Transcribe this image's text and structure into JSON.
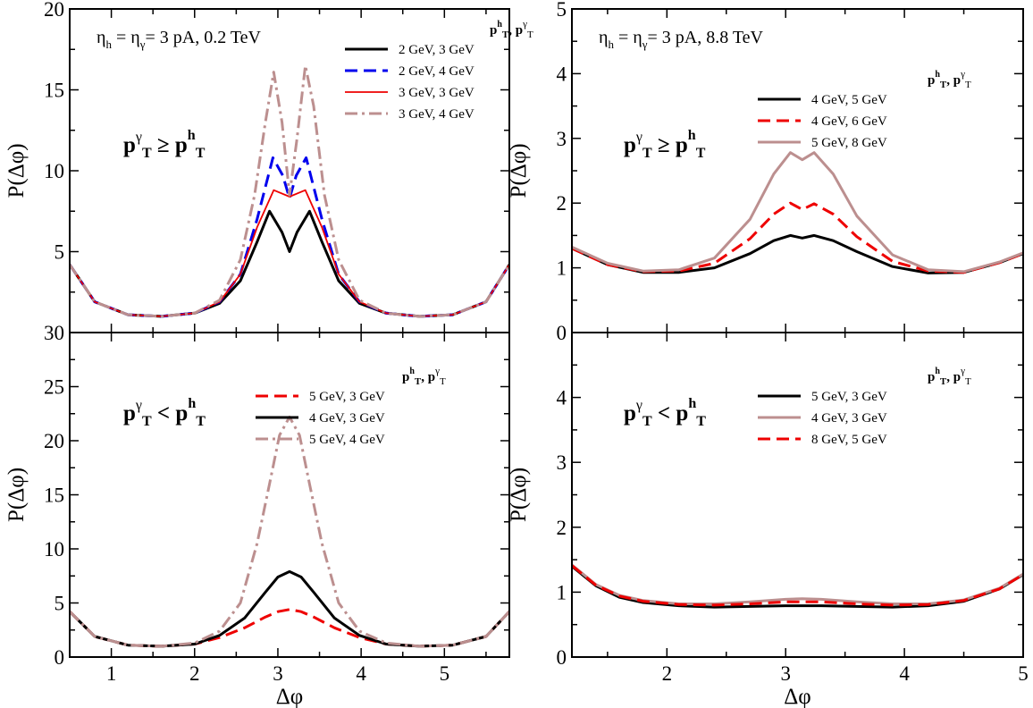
{
  "chart_data": [
    {
      "type": "line",
      "panel": "top-left",
      "ylabel": "P(Δφ)",
      "xlabel": "",
      "xlim": [
        0.5,
        5.78
      ],
      "ylim": [
        0,
        20
      ],
      "xticks": [
        1,
        2,
        3,
        4,
        5
      ],
      "yticks": [
        0,
        5,
        10,
        15,
        20
      ],
      "ytick_labels": [
        "",
        "5",
        "10",
        "15",
        "20"
      ],
      "show_x_tick_labels": false,
      "annotation": {
        "eta_h": "η",
        "sub_h": "h",
        "eq1": " = η",
        "sub_g": "γ",
        "eq2": "= 3   pA, 0.2 TeV"
      },
      "condition": {
        "p1": "p",
        "sup1": "γ",
        "sub1": "T",
        "rel": "≥",
        "p2": "p",
        "sup2": "h",
        "sub2": "T"
      },
      "legend_title": {
        "p": "p",
        "sup_h": "h",
        "sub_t": "T",
        "sep": ", p",
        "sup_g": "γ",
        "sub_t2": "T"
      },
      "legend_position": "top-right",
      "series": [
        {
          "name": "2 GeV, 3 GeV",
          "color": "#000000",
          "dash": "",
          "width": 3,
          "x": [
            0.5,
            0.8,
            1.2,
            1.6,
            2.0,
            2.3,
            2.55,
            2.75,
            2.9,
            3.05,
            3.14,
            3.23,
            3.38,
            3.53,
            3.73,
            3.98,
            4.3,
            4.7,
            5.1,
            5.5,
            5.78
          ],
          "y": [
            4.2,
            1.9,
            1.1,
            1.0,
            1.2,
            1.8,
            3.2,
            5.6,
            7.5,
            6.2,
            5.0,
            6.2,
            7.5,
            5.6,
            3.2,
            1.8,
            1.2,
            1.0,
            1.1,
            1.9,
            4.2
          ]
        },
        {
          "name": "2 GeV, 4 GeV",
          "color": "#0000ee",
          "dash": "14,7",
          "width": 3,
          "x": [
            0.5,
            0.8,
            1.2,
            1.6,
            2.0,
            2.3,
            2.55,
            2.75,
            2.94,
            3.06,
            3.14,
            3.22,
            3.34,
            3.53,
            3.73,
            3.98,
            4.3,
            4.7,
            5.1,
            5.5,
            5.78
          ],
          "y": [
            4.2,
            1.9,
            1.1,
            1.0,
            1.2,
            1.9,
            3.6,
            7.0,
            10.8,
            9.7,
            8.3,
            9.7,
            10.8,
            7.0,
            3.6,
            1.9,
            1.2,
            1.0,
            1.1,
            1.9,
            4.2
          ]
        },
        {
          "name": "3 GeV, 3 GeV",
          "color": "#ee0000",
          "dash": "",
          "width": 1.8,
          "x": [
            0.5,
            0.8,
            1.2,
            1.6,
            2.0,
            2.3,
            2.55,
            2.75,
            2.95,
            3.14,
            3.33,
            3.53,
            3.73,
            3.98,
            4.3,
            4.7,
            5.1,
            5.5,
            5.78
          ],
          "y": [
            4.2,
            1.9,
            1.1,
            1.0,
            1.2,
            1.9,
            3.6,
            6.5,
            8.8,
            8.4,
            8.8,
            6.5,
            3.6,
            1.9,
            1.2,
            1.0,
            1.1,
            1.9,
            4.2
          ]
        },
        {
          "name": "3 GeV, 4 GeV",
          "color": "#bc8f8f",
          "dash": "14,5,3,5",
          "width": 3,
          "x": [
            0.5,
            0.8,
            1.2,
            1.6,
            2.0,
            2.3,
            2.55,
            2.72,
            2.85,
            2.95,
            3.05,
            3.14,
            3.23,
            3.33,
            3.43,
            3.56,
            3.73,
            3.98,
            4.3,
            4.7,
            5.1,
            5.5,
            5.78
          ],
          "y": [
            4.2,
            1.9,
            1.1,
            1.0,
            1.2,
            2.0,
            4.5,
            8.5,
            13.0,
            16.1,
            13.0,
            8.5,
            12.0,
            16.5,
            14.0,
            8.5,
            4.5,
            2.0,
            1.2,
            1.0,
            1.1,
            1.9,
            4.2
          ]
        }
      ]
    },
    {
      "type": "line",
      "panel": "top-right",
      "ylabel": "P(Δφ)",
      "xlabel": "",
      "xlim": [
        1.2,
        5.0
      ],
      "ylim": [
        0,
        5
      ],
      "xticks": [
        2,
        3,
        4,
        5
      ],
      "yticks": [
        0,
        1,
        2,
        3,
        4,
        5
      ],
      "ytick_labels": [
        "0",
        "1",
        "2",
        "3",
        "4",
        "5"
      ],
      "show_x_tick_labels": false,
      "annotation": {
        "eta_h": "η",
        "sub_h": "h",
        "eq1": " = η",
        "sub_g": "γ",
        "eq2": "= 3   pA, 8.8 TeV"
      },
      "condition": {
        "p1": "p",
        "sup1": "γ",
        "sub1": "T",
        "rel": "≥",
        "p2": "p",
        "sup2": "h",
        "sub2": "T"
      },
      "legend_title": {
        "p": "p",
        "sup_h": "h",
        "sub_t": "T",
        "sep": ", p",
        "sup_g": "γ",
        "sub_t2": "T"
      },
      "legend_position": "top-right",
      "series": [
        {
          "name": "4 GeV, 5 GeV",
          "color": "#000000",
          "dash": "",
          "width": 3,
          "x": [
            1.2,
            1.5,
            1.8,
            2.1,
            2.4,
            2.7,
            2.9,
            3.04,
            3.14,
            3.24,
            3.4,
            3.6,
            3.9,
            4.2,
            4.5,
            4.8,
            5.0
          ],
          "y": [
            1.3,
            1.05,
            0.93,
            0.93,
            1.0,
            1.22,
            1.42,
            1.5,
            1.46,
            1.5,
            1.42,
            1.25,
            1.02,
            0.92,
            0.93,
            1.08,
            1.22
          ]
        },
        {
          "name": "4 GeV, 6 GeV",
          "color": "#ee0000",
          "dash": "14,7",
          "width": 3,
          "x": [
            1.2,
            1.5,
            1.8,
            2.1,
            2.4,
            2.7,
            2.9,
            3.04,
            3.14,
            3.24,
            3.4,
            3.6,
            3.9,
            4.2,
            4.5,
            4.8,
            5.0
          ],
          "y": [
            1.3,
            1.05,
            0.94,
            0.95,
            1.07,
            1.45,
            1.83,
            2.0,
            1.9,
            1.99,
            1.83,
            1.48,
            1.1,
            0.95,
            0.93,
            1.08,
            1.22
          ]
        },
        {
          "name": "5 GeV, 8  GeV",
          "color": "#bc8f8f",
          "dash": "",
          "width": 3,
          "x": [
            1.2,
            1.5,
            1.8,
            2.1,
            2.4,
            2.7,
            2.9,
            3.04,
            3.14,
            3.24,
            3.4,
            3.6,
            3.9,
            4.2,
            4.5,
            4.8,
            5.0
          ],
          "y": [
            1.32,
            1.07,
            0.95,
            0.97,
            1.15,
            1.75,
            2.45,
            2.78,
            2.67,
            2.78,
            2.45,
            1.8,
            1.2,
            0.97,
            0.94,
            1.09,
            1.23
          ]
        }
      ]
    },
    {
      "type": "line",
      "panel": "bottom-left",
      "ylabel": "P(Δφ)",
      "xlabel": "Δφ",
      "xlim": [
        0.5,
        5.78
      ],
      "ylim": [
        0,
        30
      ],
      "xticks": [
        1,
        2,
        3,
        4,
        5
      ],
      "yticks": [
        0,
        5,
        10,
        15,
        20,
        25,
        30
      ],
      "ytick_labels": [
        "0",
        "5",
        "10",
        "15",
        "20",
        "25",
        "30"
      ],
      "show_x_tick_labels": true,
      "condition": {
        "p1": "p",
        "sup1": "γ",
        "sub1": "T",
        "rel": "<",
        "p2": "p",
        "sup2": "h",
        "sub2": "T"
      },
      "legend_title": {
        "p": "p",
        "sup_h": "h",
        "sub_t": "T",
        "sep": ", p",
        "sup_g": "γ",
        "sub_t2": "T"
      },
      "legend_position": "top-right",
      "series": [
        {
          "name": "5 GeV, 3 GeV",
          "color": "#ee0000",
          "dash": "14,7",
          "width": 3,
          "x": [
            0.5,
            0.8,
            1.2,
            1.6,
            2.0,
            2.3,
            2.6,
            2.85,
            3.0,
            3.14,
            3.28,
            3.43,
            3.68,
            3.98,
            4.3,
            4.7,
            5.1,
            5.5,
            5.78
          ],
          "y": [
            4.2,
            1.9,
            1.1,
            1.0,
            1.2,
            1.8,
            2.7,
            3.7,
            4.2,
            4.4,
            4.2,
            3.7,
            2.7,
            1.8,
            1.2,
            1.0,
            1.1,
            1.9,
            4.2
          ]
        },
        {
          "name": "4 GeV, 3 GeV",
          "color": "#000000",
          "dash": "",
          "width": 3,
          "x": [
            0.5,
            0.8,
            1.2,
            1.6,
            2.0,
            2.3,
            2.6,
            2.85,
            3.0,
            3.14,
            3.28,
            3.43,
            3.68,
            3.98,
            4.3,
            4.7,
            5.1,
            5.5,
            5.78
          ],
          "y": [
            4.2,
            1.9,
            1.1,
            1.0,
            1.2,
            2.0,
            3.6,
            6.0,
            7.4,
            7.9,
            7.4,
            6.0,
            3.6,
            2.0,
            1.2,
            1.0,
            1.1,
            1.9,
            4.2
          ]
        },
        {
          "name": "5 GeV, 4 GeV",
          "color": "#bc8f8f",
          "dash": "14,5,3,5",
          "width": 3,
          "x": [
            0.5,
            0.8,
            1.2,
            1.6,
            2.0,
            2.3,
            2.55,
            2.75,
            2.9,
            3.02,
            3.14,
            3.26,
            3.38,
            3.53,
            3.73,
            3.98,
            4.3,
            4.7,
            5.1,
            5.5,
            5.78
          ],
          "y": [
            4.2,
            1.9,
            1.1,
            1.0,
            1.3,
            2.4,
            5.0,
            10.5,
            16.0,
            20.5,
            22.2,
            20.5,
            16.0,
            10.5,
            5.0,
            2.4,
            1.3,
            1.0,
            1.1,
            1.9,
            4.2
          ]
        }
      ]
    },
    {
      "type": "line",
      "panel": "bottom-right",
      "ylabel": "P(Δφ)",
      "xlabel": "Δφ",
      "xlim": [
        1.2,
        5.0
      ],
      "ylim": [
        0,
        5
      ],
      "xticks": [
        2,
        3,
        4,
        5
      ],
      "yticks": [
        0,
        1,
        2,
        3,
        4
      ],
      "ytick_labels": [
        "0",
        "1",
        "2",
        "3",
        "4"
      ],
      "show_x_tick_labels": true,
      "condition": {
        "p1": "p",
        "sup1": "γ",
        "sub1": "T",
        "rel": "<",
        "p2": "p",
        "sup2": "h",
        "sub2": "T"
      },
      "legend_title": {
        "p": "p",
        "sup_h": "h",
        "sub_t": "T",
        "sep": ", p",
        "sup_g": "γ",
        "sub_t2": "T"
      },
      "legend_position": "top-right",
      "series": [
        {
          "name": "5 GeV, 3 GeV",
          "color": "#000000",
          "dash": "",
          "width": 3,
          "x": [
            1.2,
            1.4,
            1.6,
            1.8,
            2.1,
            2.4,
            2.7,
            3.0,
            3.14,
            3.3,
            3.6,
            3.9,
            4.2,
            4.5,
            4.8,
            5.0
          ],
          "y": [
            1.4,
            1.1,
            0.92,
            0.84,
            0.79,
            0.77,
            0.78,
            0.79,
            0.79,
            0.79,
            0.78,
            0.77,
            0.79,
            0.86,
            1.05,
            1.27
          ]
        },
        {
          "name": "4 GeV, 3 GeV",
          "color": "#bc8f8f",
          "dash": "",
          "width": 3,
          "x": [
            1.2,
            1.4,
            1.6,
            1.8,
            2.1,
            2.4,
            2.7,
            3.0,
            3.14,
            3.3,
            3.6,
            3.9,
            4.2,
            4.5,
            4.8,
            5.0
          ],
          "y": [
            1.42,
            1.12,
            0.95,
            0.87,
            0.82,
            0.82,
            0.85,
            0.89,
            0.9,
            0.89,
            0.85,
            0.82,
            0.82,
            0.88,
            1.06,
            1.28
          ]
        },
        {
          "name": "8 GeV, 5 GeV",
          "color": "#ee0000",
          "dash": "14,7",
          "width": 3,
          "x": [
            1.2,
            1.4,
            1.6,
            1.8,
            2.1,
            2.4,
            2.7,
            3.0,
            3.14,
            3.3,
            3.6,
            3.9,
            4.2,
            4.5,
            4.8,
            5.0
          ],
          "y": [
            1.41,
            1.11,
            0.94,
            0.86,
            0.81,
            0.8,
            0.82,
            0.85,
            0.85,
            0.85,
            0.82,
            0.8,
            0.81,
            0.87,
            1.05,
            1.27
          ]
        }
      ]
    }
  ]
}
